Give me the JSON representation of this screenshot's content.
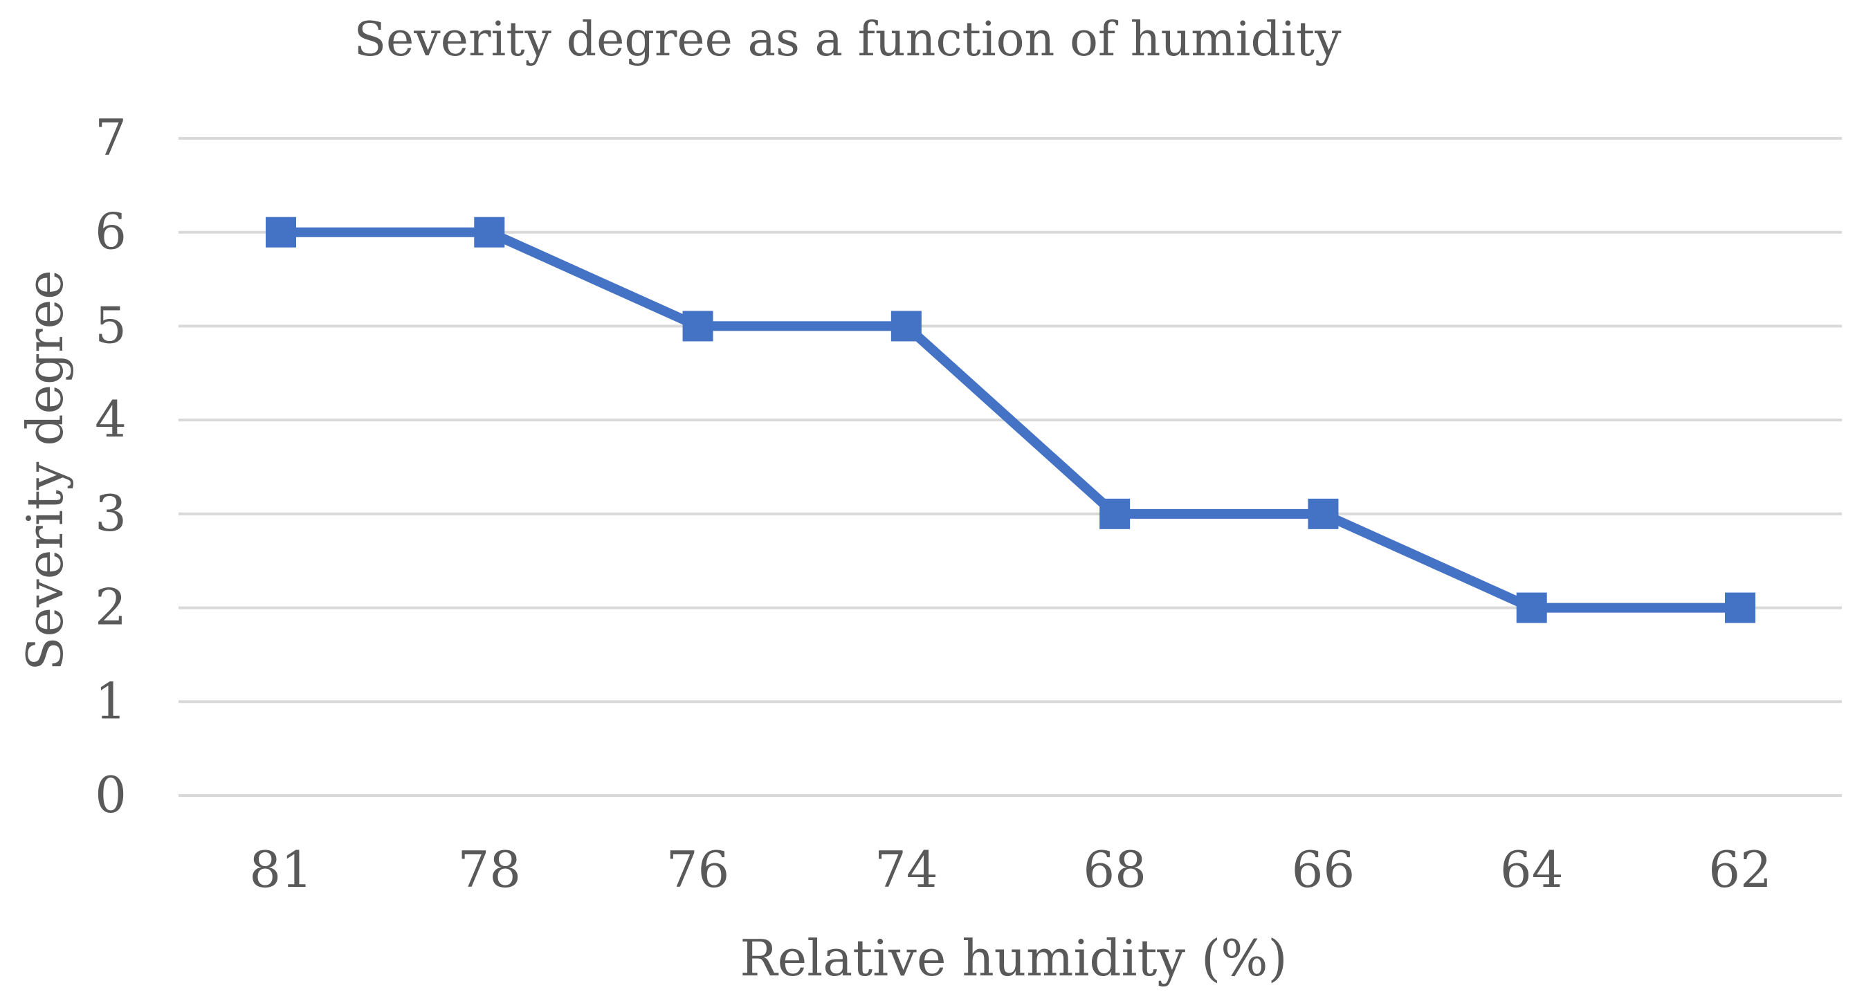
{
  "chart_data": {
    "type": "line",
    "title": "Severity degree as a function of humidity",
    "xlabel": "Relative humidity (%)",
    "ylabel": "Severity degree",
    "categories": [
      "81",
      "78",
      "76",
      "74",
      "68",
      "66",
      "64",
      "62"
    ],
    "series": [
      {
        "values": [
          6,
          6,
          5,
          5,
          3,
          3,
          2,
          2
        ]
      }
    ],
    "ylim": [
      0,
      7
    ],
    "yticks": [
      "0",
      "1",
      "2",
      "3",
      "4",
      "5",
      "6",
      "7"
    ],
    "grid": "horizontal",
    "legend": "none",
    "marker": "square"
  },
  "colors": {
    "series": "#4472C4",
    "grid": "#D9D9D9",
    "text": "#595959"
  }
}
